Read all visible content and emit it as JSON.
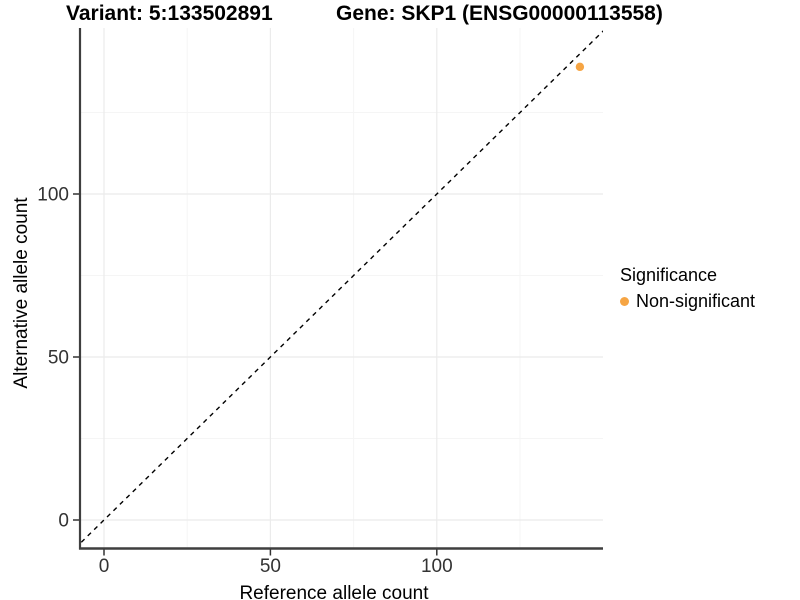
{
  "chart_data": {
    "type": "scatter",
    "title_left": "Variant: 5:133502891",
    "title_right": "Gene: SKP1 (ENSG00000113558)",
    "xlabel": "Reference allele count",
    "ylabel": "Alternative allele count",
    "xlim": [
      -7,
      150
    ],
    "ylim": [
      -9,
      151
    ],
    "x_ticks": [
      0,
      50,
      100
    ],
    "y_ticks": [
      0,
      50,
      100
    ],
    "x_minor_gridlines": [
      25,
      75,
      125
    ],
    "y_minor_gridlines": [
      25,
      75,
      125
    ],
    "grid": true,
    "reference_line": {
      "style": "dashed",
      "slope": 1,
      "intercept": 0
    },
    "series": [
      {
        "name": "Non-significant",
        "color": "#F6A544",
        "points": [
          {
            "x": 143,
            "y": 139
          }
        ]
      }
    ],
    "legend": {
      "position": "right",
      "title": "Significance",
      "items": [
        {
          "label": "Non-significant",
          "color": "#F6A544"
        }
      ]
    }
  },
  "colors": {
    "axis_line": "#3f3f3f",
    "tick_mark": "#333333",
    "tick_label": "#333333",
    "grid_major": "#ebebeb",
    "grid_minor": "#f5f5f5",
    "reference_line": "#000000",
    "background": "#ffffff"
  }
}
